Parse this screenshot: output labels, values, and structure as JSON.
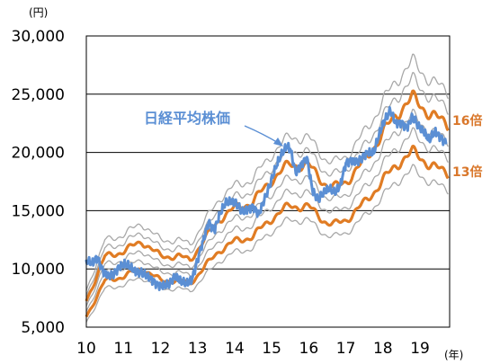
{
  "chart_data": {
    "type": "line",
    "y_unit": "(円)",
    "x_unit": "(年)",
    "xlim": [
      10,
      19.8
    ],
    "ylim": [
      5000,
      30000
    ],
    "x_ticks": [
      10,
      11,
      12,
      13,
      14,
      15,
      16,
      17,
      18,
      19
    ],
    "x_tick_labels": [
      "10",
      "11",
      "12",
      "13",
      "14",
      "15",
      "16",
      "17",
      "18",
      "19"
    ],
    "y_ticks": [
      5000,
      10000,
      15000,
      20000,
      25000,
      30000
    ],
    "y_tick_labels": [
      "5,000",
      "10,000",
      "15,000",
      "20,000",
      "25,000",
      "30,000"
    ],
    "grid": "horizontal",
    "eps_x": [
      10.0,
      10.5,
      11.0,
      11.5,
      12.0,
      12.5,
      12.8,
      13.2,
      13.6,
      14.0,
      14.5,
      15.0,
      15.5,
      16.0,
      16.5,
      16.7,
      17.0,
      17.5,
      18.0,
      18.5,
      18.8,
      19.2,
      19.6,
      19.75
    ],
    "eps_y": [
      454,
      690,
      719,
      773,
      693,
      692,
      673,
      784,
      894,
      950,
      985,
      1104,
      1188,
      1177,
      1073,
      1061,
      1093,
      1203,
      1354,
      1490,
      1540,
      1472,
      1412,
      1400
    ],
    "pe_bands": [
      {
        "multiple": 12,
        "color": "#a8a8a8"
      },
      {
        "multiple": 13,
        "name": "13倍",
        "color": "#e07c24"
      },
      {
        "multiple": 14,
        "color": "#a8a8a8"
      },
      {
        "multiple": 15,
        "color": "#a8a8a8"
      },
      {
        "multiple": 16,
        "name": "16倍",
        "color": "#e07c24"
      },
      {
        "multiple": 17,
        "color": "#a8a8a8"
      },
      {
        "multiple": 18,
        "color": "#a8a8a8"
      }
    ],
    "series": [
      {
        "name": "日経平均株価",
        "color": "#5b8fd4",
        "x": [
          10.0,
          10.15,
          10.3,
          10.45,
          10.6,
          10.75,
          10.9,
          11.05,
          11.2,
          11.35,
          11.5,
          11.65,
          11.8,
          11.95,
          12.1,
          12.25,
          12.4,
          12.55,
          12.7,
          12.85,
          13.0,
          13.15,
          13.3,
          13.45,
          13.6,
          13.75,
          13.9,
          14.05,
          14.2,
          14.35,
          14.5,
          14.65,
          14.8,
          14.95,
          15.1,
          15.25,
          15.4,
          15.5,
          15.65,
          15.8,
          15.95,
          16.1,
          16.25,
          16.4,
          16.55,
          16.7,
          16.85,
          17.0,
          17.15,
          17.3,
          17.45,
          17.6,
          17.75,
          17.9,
          18.05,
          18.2,
          18.35,
          18.5,
          18.65,
          18.8,
          18.95,
          19.1,
          19.25,
          19.4,
          19.55,
          19.7
        ],
        "values": [
          10700,
          10500,
          11000,
          9800,
          9400,
          9600,
          10200,
          10400,
          10100,
          9700,
          9700,
          9400,
          9000,
          8600,
          8600,
          8700,
          9400,
          8900,
          8700,
          9100,
          10800,
          12400,
          14000,
          13300,
          14700,
          15600,
          15800,
          15600,
          14900,
          15100,
          15400,
          14700,
          15900,
          17200,
          18700,
          19700,
          20500,
          20300,
          18200,
          19000,
          19600,
          16700,
          15900,
          16600,
          16900,
          16500,
          17200,
          19100,
          19300,
          19200,
          19600,
          20000,
          19900,
          21600,
          22800,
          23600,
          22500,
          22600,
          22100,
          23100,
          22300,
          21800,
          21000,
          21800,
          21300,
          20800
        ]
      }
    ],
    "annotations": [
      {
        "text": "日経平均株価"
      },
      {
        "text": "16倍"
      },
      {
        "text": "13倍"
      }
    ]
  }
}
